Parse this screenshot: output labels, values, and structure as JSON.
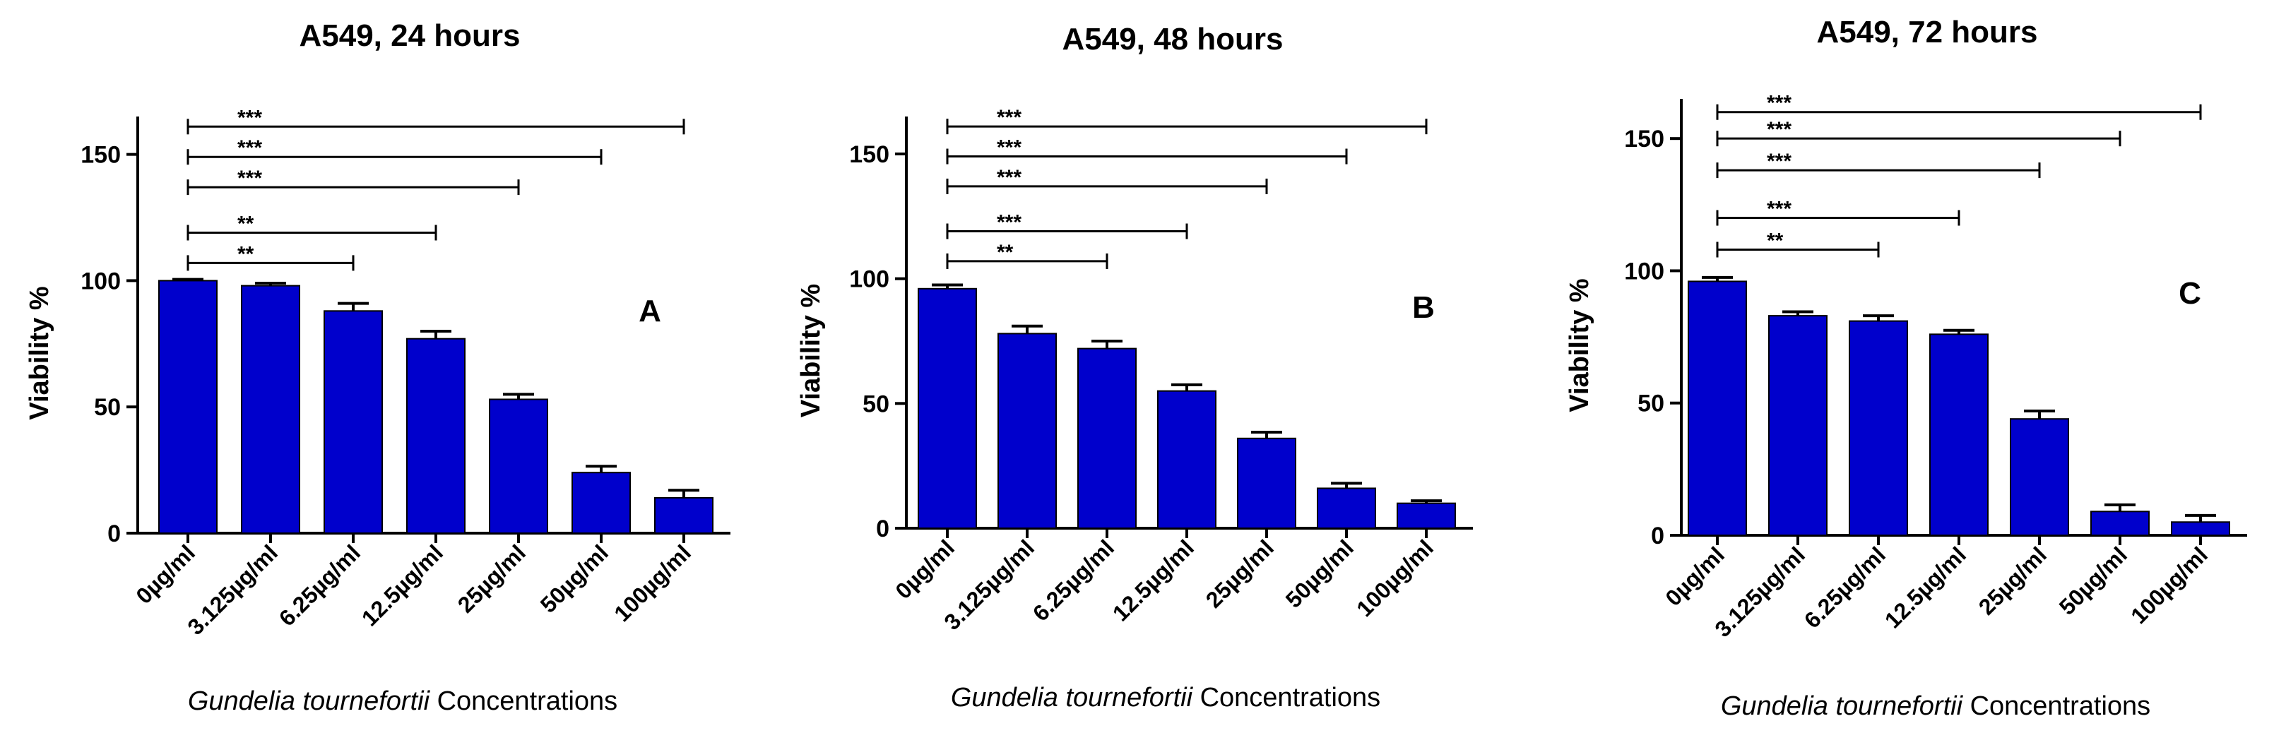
{
  "chart_data": [
    {
      "type": "bar",
      "title": "A549, 24 hours",
      "panel_letter": "A",
      "ylabel": "Viability %",
      "xlabel_italic": "Gundelia tournefortii",
      "xlabel_rest": " Concentrations",
      "categories": [
        "0µg/ml",
        "3.125µg/ml",
        "6.25µg/ml",
        "12.5µg/ml",
        "25µg/ml",
        "50µg/ml",
        "100µg/ml"
      ],
      "values": [
        100,
        98,
        88,
        77,
        53,
        24,
        14
      ],
      "errors": [
        0.5,
        1,
        3,
        3,
        2,
        2.5,
        3
      ],
      "ylim": [
        0,
        165
      ],
      "yticks": [
        0,
        50,
        100,
        150
      ],
      "bar_color": "#0000CC",
      "significance": [
        {
          "label": "**",
          "to_index": 2,
          "y": 107
        },
        {
          "label": "**",
          "to_index": 3,
          "y": 119
        },
        {
          "label": "***",
          "to_index": 4,
          "y": 137
        },
        {
          "label": "***",
          "to_index": 5,
          "y": 149
        },
        {
          "label": "***",
          "to_index": 6,
          "y": 161
        }
      ]
    },
    {
      "type": "bar",
      "title": "A549, 48 hours",
      "panel_letter": "B",
      "ylabel": "Viability %",
      "xlabel_italic": "Gundelia tournefortii",
      "xlabel_rest": " Concentrations",
      "categories": [
        "0µg/ml",
        "3.125µg/ml",
        "6.25µg/ml",
        "12.5µg/ml",
        "25µg/ml",
        "50µg/ml",
        "100µg/ml"
      ],
      "values": [
        96,
        78,
        72,
        55,
        36,
        16,
        10
      ],
      "errors": [
        1.5,
        3,
        3,
        2.5,
        2.5,
        2,
        1
      ],
      "ylim": [
        0,
        165
      ],
      "yticks": [
        0,
        50,
        100,
        150
      ],
      "bar_color": "#0000CC",
      "significance": [
        {
          "label": "**",
          "to_index": 2,
          "y": 107
        },
        {
          "label": "***",
          "to_index": 3,
          "y": 119
        },
        {
          "label": "***",
          "to_index": 4,
          "y": 137
        },
        {
          "label": "***",
          "to_index": 5,
          "y": 149
        },
        {
          "label": "***",
          "to_index": 6,
          "y": 161
        }
      ]
    },
    {
      "type": "bar",
      "title": "A549, 72 hours",
      "panel_letter": "C",
      "ylabel": "Viability %",
      "xlabel_italic": "Gundelia tournefortii",
      "xlabel_rest": " Concentrations",
      "categories": [
        "0µg/ml",
        "3.125µg/ml",
        "6.25µg/ml",
        "12.5µg/ml",
        "25µg/ml",
        "50µg/ml",
        "100µg/ml"
      ],
      "values": [
        96,
        83,
        81,
        76,
        44,
        9,
        5
      ],
      "errors": [
        1.5,
        1.5,
        2,
        1.5,
        3,
        2.5,
        2.5
      ],
      "ylim": [
        0,
        165
      ],
      "yticks": [
        0,
        50,
        100,
        150
      ],
      "bar_color": "#0000CC",
      "significance": [
        {
          "label": "**",
          "to_index": 2,
          "y": 108
        },
        {
          "label": "***",
          "to_index": 3,
          "y": 120
        },
        {
          "label": "***",
          "to_index": 4,
          "y": 138
        },
        {
          "label": "***",
          "to_index": 5,
          "y": 150
        },
        {
          "label": "***",
          "to_index": 6,
          "y": 160
        }
      ]
    }
  ]
}
